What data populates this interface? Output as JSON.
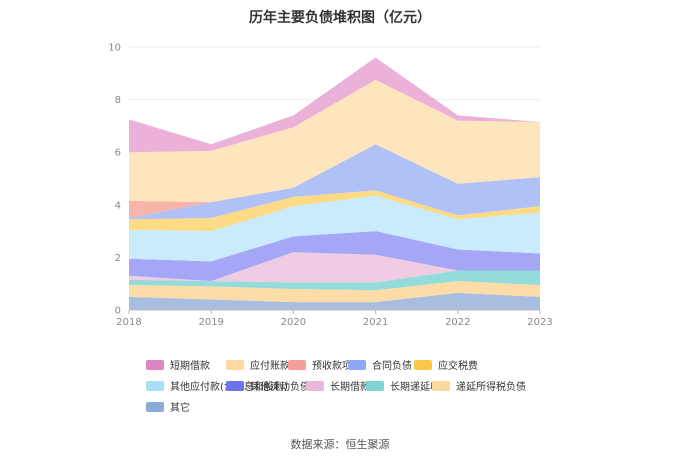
{
  "title": "历年主要负债堆积图（亿元）",
  "source": "数据来源：恒生聚源",
  "chart_data": {
    "type": "area",
    "stacked": true,
    "title": "历年主要负债堆积图（亿元）",
    "x": [
      "2018",
      "2019",
      "2020",
      "2021",
      "2022",
      "2023"
    ],
    "ylim": [
      0,
      10
    ],
    "yticks": [
      "0",
      "2",
      "4",
      "6",
      "8",
      "10"
    ],
    "grid": true,
    "legend_position": "bottom",
    "series": [
      {
        "name": "其它",
        "color": "#9fb9dd",
        "values": [
          0.5,
          0.4,
          0.3,
          0.3,
          0.65,
          0.5
        ]
      },
      {
        "name": "递延所得税负债",
        "color": "#fdd9a0",
        "values": [
          0.45,
          0.5,
          0.5,
          0.45,
          0.45,
          0.45
        ]
      },
      {
        "name": "长期递延收益",
        "color": "#8ad9d6",
        "values": [
          0.2,
          0.2,
          0.25,
          0.3,
          0.4,
          0.55
        ]
      },
      {
        "name": "长期借款",
        "color": "#efc8e2",
        "values": [
          0.15,
          0.0,
          1.15,
          1.05,
          0.0,
          0.0
        ]
      },
      {
        "name": "其他流动负债",
        "color": "#9d9ef5",
        "values": [
          0.65,
          0.75,
          0.6,
          0.9,
          0.8,
          0.65
        ]
      },
      {
        "name": "其他应付款(含利息和股利)",
        "color": "#c4e9fb",
        "values": [
          1.1,
          1.15,
          1.15,
          1.35,
          1.15,
          1.55
        ]
      },
      {
        "name": "应交税费",
        "color": "#fdd87a",
        "values": [
          0.4,
          0.5,
          0.35,
          0.2,
          0.15,
          0.25
        ]
      },
      {
        "name": "合同负债",
        "color": "#a9bcf7",
        "values": [
          0.05,
          0.6,
          0.35,
          1.75,
          1.2,
          1.1
        ]
      },
      {
        "name": "预收款项",
        "color": "#f8aea3",
        "values": [
          0.65,
          0.0,
          0.0,
          0.0,
          0.0,
          0.0
        ]
      },
      {
        "name": "应付账款",
        "color": "#fde3b8",
        "values": [
          1.85,
          1.95,
          2.3,
          2.45,
          2.4,
          2.1
        ]
      },
      {
        "name": "短期借款",
        "color": "#e9aad6",
        "values": [
          1.25,
          0.25,
          0.45,
          0.85,
          0.2,
          0.0
        ]
      }
    ]
  },
  "legend_order": [
    "短期借款",
    "应付账款",
    "预收款项",
    "合同负债",
    "应交税费",
    "其他应付款(含利息和股利)",
    "其他流动负债",
    "长期借款",
    "长期递延收益",
    "递延所得税负债",
    "其它"
  ],
  "legend_colors": [
    "#dc87c4",
    "#fdd9a0",
    "#f5a097",
    "#8fa6f5",
    "#fbc64a",
    "#a8e0fa",
    "#7173ee",
    "#ebb6dc",
    "#7fd3d0",
    "#fbd99a",
    "#8aaad8"
  ]
}
